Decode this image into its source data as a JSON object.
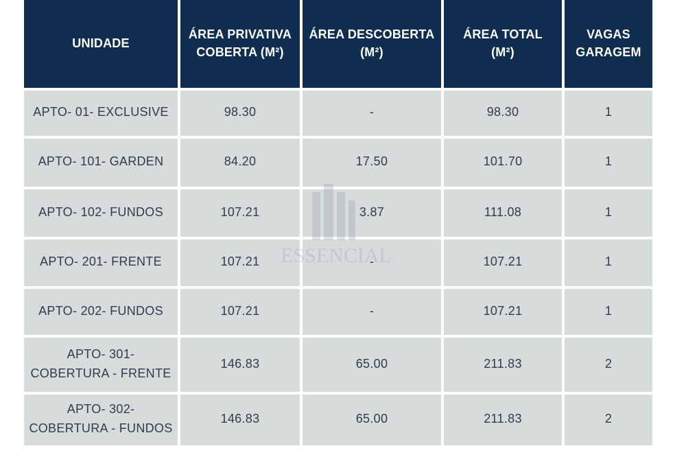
{
  "table": {
    "headers": [
      "UNIDADE",
      "ÁREA PRIVATIVA\nCOBERTA (M²)",
      "ÁREA DESCOBERTA\n(M²)",
      "ÁREA TOTAL\n(M²)",
      "VAGAS\nGARAGEM"
    ],
    "rows": [
      [
        "APTO- 01- EXCLUSIVE",
        "98.30",
        "-",
        "98.30",
        "1"
      ],
      [
        "APTO- 101- GARDEN",
        "84.20",
        "17.50",
        "101.70",
        "1"
      ],
      [
        "APTO- 102- FUNDOS",
        "107.21",
        "3.87",
        "111.08",
        "1"
      ],
      [
        "APTO- 201- FRENTE",
        "107.21",
        "-",
        "107.21",
        "1"
      ],
      [
        "APTO- 202- FUNDOS",
        "107.21",
        "-",
        "107.21",
        "1"
      ],
      [
        "APTO- 301-\nCOBERTURA - FRENTE",
        "146.83",
        "65.00",
        "211.83",
        "2"
      ],
      [
        "APTO- 302-\nCOBERTURA - FUNDOS",
        "146.83",
        "65.00",
        "211.83",
        "2"
      ]
    ]
  },
  "watermark": {
    "text": "ESSENCIAL",
    "color": "#8a99a8"
  },
  "colors": {
    "header_bg": "#0f2d4e",
    "cell_bg": "#d6dbdc",
    "cell_text": "#2e3d4d"
  }
}
